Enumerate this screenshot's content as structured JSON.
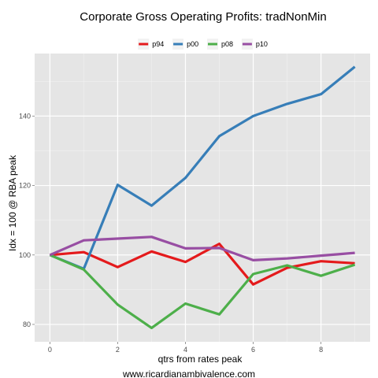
{
  "chart_data": {
    "type": "line",
    "title": "Corporate Gross Operating Profits: tradNonMin",
    "xlabel": "qtrs from rates peak",
    "ylabel": "Idx = 100 @ RBA peak",
    "caption": "www.ricardianambivalence.com",
    "xlim": [
      -0.45,
      9.45
    ],
    "ylim": [
      75,
      158
    ],
    "x_ticks": [
      0,
      2,
      4,
      6,
      8
    ],
    "y_ticks": [
      80,
      100,
      120,
      140
    ],
    "grid": true,
    "legend_position": "top",
    "background": "#e5e5e5",
    "series": [
      {
        "name": "p94",
        "color": "#e41a1c",
        "x": [
          0,
          1,
          2,
          3,
          4,
          5,
          6,
          7,
          8,
          9
        ],
        "y": [
          100,
          100.8,
          96.5,
          101,
          98,
          103.2,
          91.5,
          96.3,
          98.2,
          97.6
        ]
      },
      {
        "name": "p00",
        "color": "#377eb8",
        "x": [
          0,
          1,
          2,
          3,
          4,
          5,
          6,
          7,
          8,
          9
        ],
        "y": [
          100,
          96,
          120.2,
          114.2,
          122.2,
          134.2,
          140,
          143.5,
          146.3,
          154.2
        ]
      },
      {
        "name": "p08",
        "color": "#4daf4a",
        "x": [
          0,
          1,
          2,
          3,
          4,
          5,
          6,
          7,
          8,
          9
        ],
        "y": [
          100,
          95.8,
          85.7,
          79,
          86,
          82.9,
          94.5,
          97,
          94,
          97.2
        ]
      },
      {
        "name": "p10",
        "color": "#984ea3",
        "x": [
          0,
          1,
          2,
          3,
          4,
          5,
          6,
          7,
          8,
          9
        ],
        "y": [
          100,
          104.2,
          104.7,
          105.2,
          101.9,
          102,
          98.5,
          99,
          99.8,
          100.6
        ]
      }
    ]
  }
}
